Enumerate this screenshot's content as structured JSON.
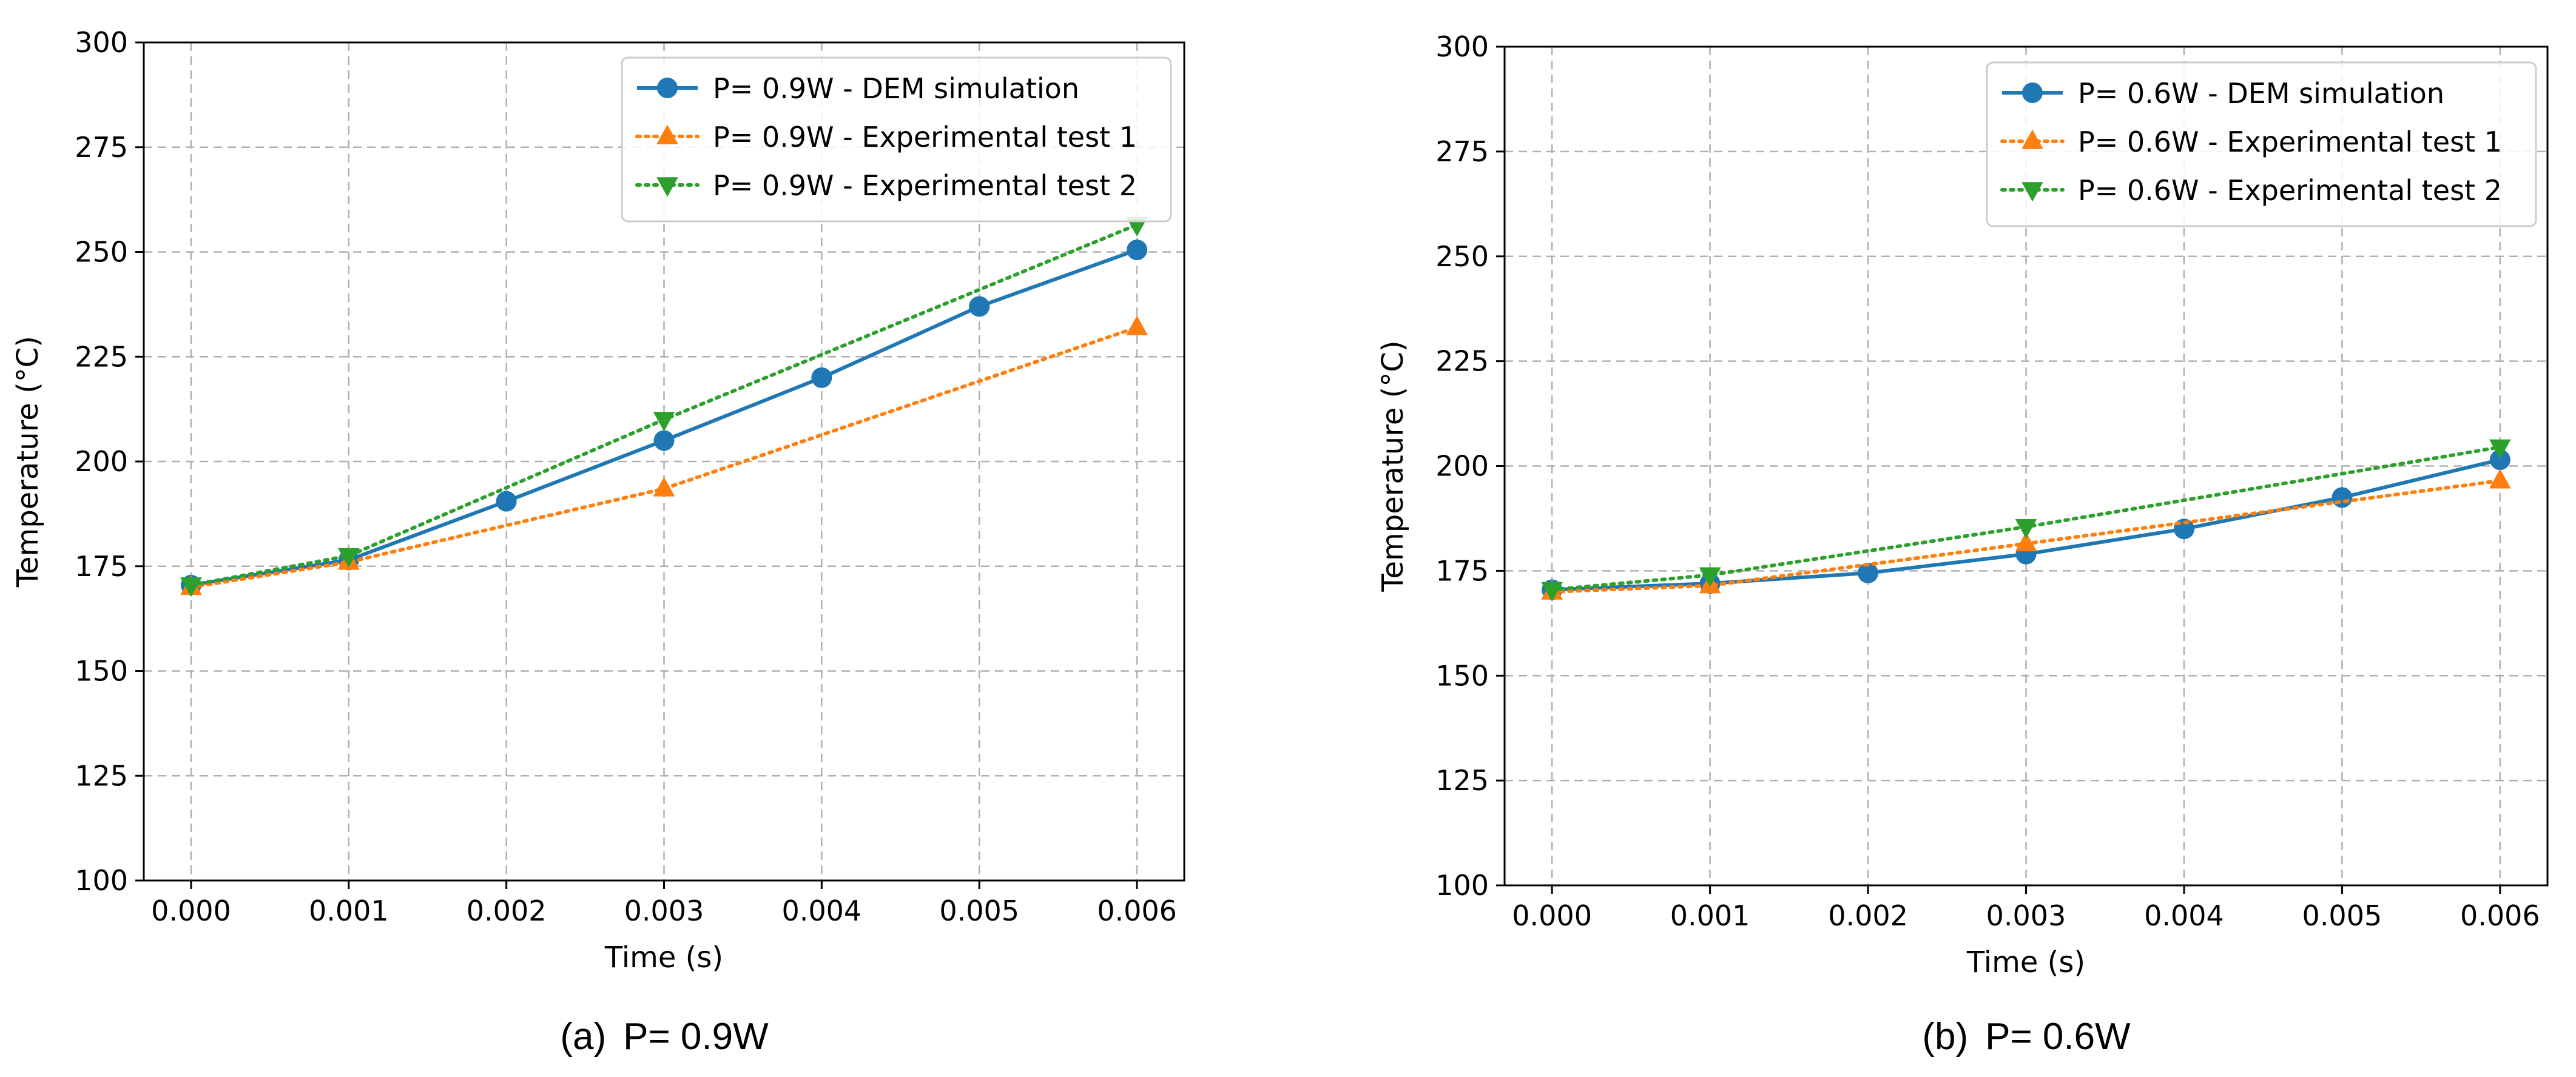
{
  "chart_data": [
    {
      "type": "line",
      "xlabel": "Time (s)",
      "ylabel": "Temperature (°C)",
      "caption_tag": "(a)",
      "caption_text": "P= 0.9W",
      "xlim": [
        -0.0003,
        0.0063
      ],
      "ylim": [
        100,
        300
      ],
      "xticks": [
        0.0,
        0.001,
        0.002,
        0.003,
        0.004,
        0.005,
        0.006
      ],
      "xtick_labels": [
        "0.000",
        "0.001",
        "0.002",
        "0.003",
        "0.004",
        "0.005",
        "0.006"
      ],
      "yticks": [
        100,
        125,
        150,
        175,
        200,
        225,
        250,
        275,
        300
      ],
      "ytick_labels": [
        "100",
        "125",
        "150",
        "175",
        "200",
        "225",
        "250",
        "275",
        "300"
      ],
      "grid": true,
      "legend_position": "top-right",
      "series": [
        {
          "name": "P= 0.9W - DEM simulation",
          "color": "#1f77b4",
          "line_style": "solid",
          "marker": "circle",
          "x": [
            0.0,
            0.001,
            0.002,
            0.003,
            0.004,
            0.005,
            0.006
          ],
          "y": [
            170.5,
            176.5,
            190.5,
            205,
            220,
            237,
            250.5
          ]
        },
        {
          "name": "P= 0.9W - Experimental test 1",
          "color": "#ff7f0e",
          "line_style": "dotted",
          "marker": "triangle-up",
          "x": [
            0.0,
            0.001,
            0.003,
            0.006
          ],
          "y": [
            170,
            176,
            193.5,
            232
          ]
        },
        {
          "name": "P= 0.9W - Experimental test 2",
          "color": "#2ca02c",
          "line_style": "dotted",
          "marker": "triangle-down",
          "x": [
            0.0,
            0.001,
            0.003,
            0.006
          ],
          "y": [
            170.5,
            177.5,
            210,
            256.5
          ]
        }
      ]
    },
    {
      "type": "line",
      "xlabel": "Time (s)",
      "ylabel": "Temperature (°C)",
      "caption_tag": "(b)",
      "caption_text": "P= 0.6W",
      "xlim": [
        -0.0003,
        0.0063
      ],
      "ylim": [
        100,
        300
      ],
      "xticks": [
        0.0,
        0.001,
        0.002,
        0.003,
        0.004,
        0.005,
        0.006
      ],
      "xtick_labels": [
        "0.000",
        "0.001",
        "0.002",
        "0.003",
        "0.004",
        "0.005",
        "0.006"
      ],
      "yticks": [
        100,
        125,
        150,
        175,
        200,
        225,
        250,
        275,
        300
      ],
      "ytick_labels": [
        "100",
        "125",
        "150",
        "175",
        "200",
        "225",
        "250",
        "275",
        "300"
      ],
      "grid": true,
      "legend_position": "top-right",
      "series": [
        {
          "name": "P= 0.6W - DEM simulation",
          "color": "#1f77b4",
          "line_style": "solid",
          "marker": "circle",
          "x": [
            0.0,
            0.001,
            0.002,
            0.003,
            0.004,
            0.005,
            0.006
          ],
          "y": [
            170.5,
            172,
            174.5,
            179,
            185,
            192.5,
            201.5
          ]
        },
        {
          "name": "P= 0.6W - Experimental test 1",
          "color": "#ff7f0e",
          "line_style": "dotted",
          "marker": "triangle-up",
          "x": [
            0.0,
            0.001,
            0.003,
            0.006
          ],
          "y": [
            170,
            171.5,
            181.5,
            196.5
          ]
        },
        {
          "name": "P= 0.6W - Experimental test 2",
          "color": "#2ca02c",
          "line_style": "dotted",
          "marker": "triangle-down",
          "x": [
            0.0,
            0.001,
            0.003,
            0.006
          ],
          "y": [
            170.5,
            174,
            185.5,
            204.5
          ]
        }
      ]
    }
  ]
}
